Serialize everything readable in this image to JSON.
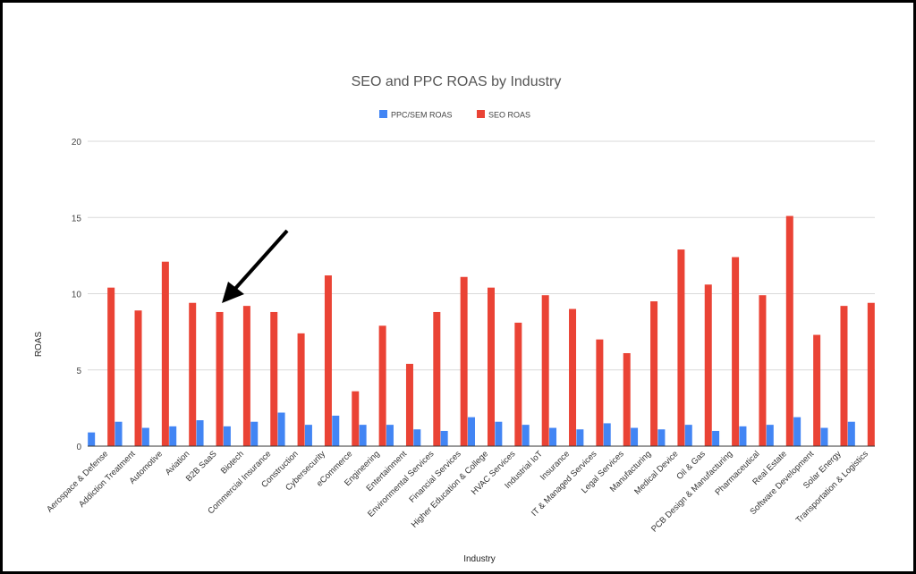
{
  "chart_data": {
    "type": "bar",
    "title": "SEO and PPC ROAS by Industry",
    "xlabel": "Industry",
    "ylabel": "ROAS",
    "ylim": [
      0,
      20
    ],
    "yticks": [
      0,
      5,
      10,
      15,
      20
    ],
    "grid": true,
    "legend_position": "top-center",
    "categories": [
      "Aerospace & Defense",
      "Addiction Treatment",
      "Automotive",
      "Aviation",
      "B2B SaaS",
      "Biotech",
      "Commercial Insurance",
      "Construction",
      "Cybersecurity",
      "eCommerce",
      "Engineering",
      "Entertainment",
      "Environmental Services",
      "Financial Services",
      "Higher Education & College",
      "HVAC Services",
      "Industrial IoT",
      "Insurance",
      "IT & Managed Services",
      "Legal Services",
      "Manufacturing",
      "Medical Device",
      "Oil & Gas",
      "PCB Design & Manufacturing",
      "Pharmaceutical",
      "Real Estate",
      "Software Development",
      "Solar Energy",
      "Transportation & Logistics"
    ],
    "series": [
      {
        "name": "PPC/SEM ROAS",
        "color": "#4285f4",
        "values": [
          0.9,
          1.6,
          1.2,
          1.3,
          1.7,
          1.3,
          1.6,
          2.2,
          1.4,
          2.0,
          1.4,
          1.4,
          1.1,
          1.0,
          1.9,
          1.6,
          1.4,
          1.2,
          1.1,
          1.5,
          1.2,
          1.1,
          1.4,
          1.0,
          1.3,
          1.4,
          1.9,
          1.2,
          1.6
        ]
      },
      {
        "name": "SEO ROAS",
        "color": "#ea4335",
        "values": [
          10.4,
          8.9,
          12.1,
          9.4,
          8.8,
          9.2,
          8.8,
          7.4,
          11.2,
          3.6,
          7.9,
          5.4,
          8.8,
          11.1,
          10.4,
          8.1,
          9.9,
          9.0,
          7.0,
          6.1,
          9.5,
          12.9,
          10.6,
          12.4,
          9.9,
          15.1,
          7.3,
          9.2,
          9.4
        ]
      }
    ],
    "annotations": [
      {
        "type": "arrow",
        "target": "B2B SaaS"
      }
    ]
  }
}
